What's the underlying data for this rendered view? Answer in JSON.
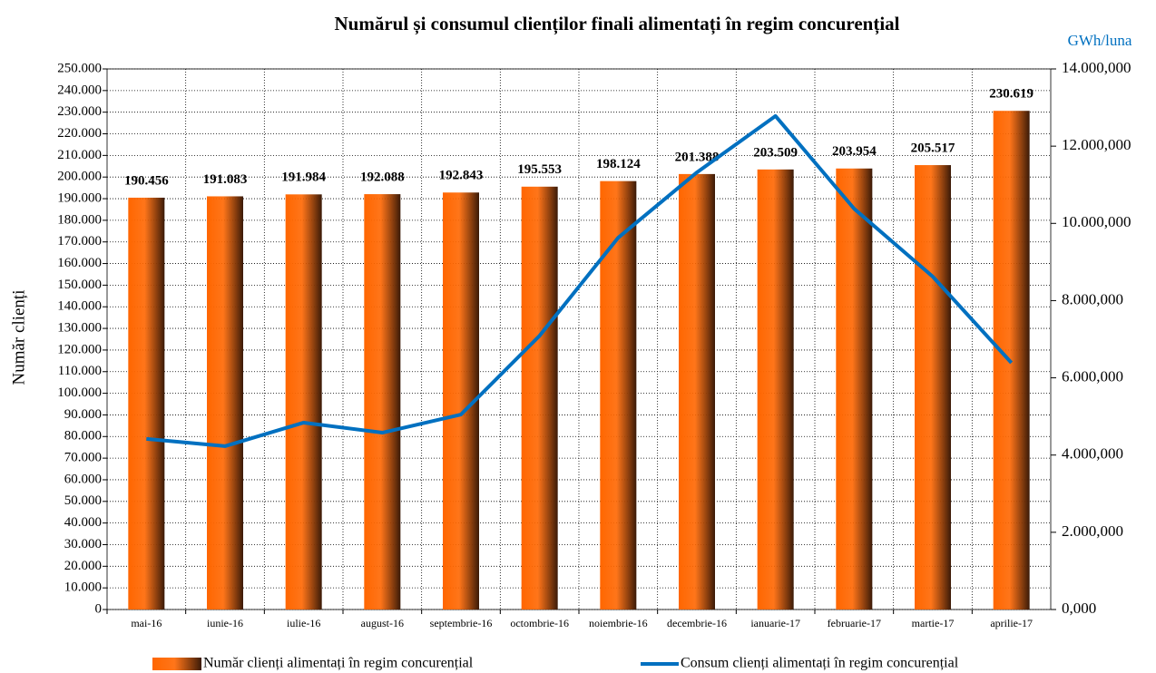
{
  "chart_data": {
    "type": "bar",
    "title": "Numărul și consumul clienților finali alimentați în regim concurențial",
    "ylabel": "Număr clienți",
    "y2label": "GWh/luna",
    "categories": [
      "mai-16",
      "iunie-16",
      "iulie-16",
      "august-16",
      "septembrie-16",
      "octombrie-16",
      "noiembrie-16",
      "decembrie-16",
      "ianuarie-17",
      "februarie-17",
      "martie-17",
      "aprilie-17"
    ],
    "series": [
      {
        "name": "Număr clienți alimentați în regim concurențial",
        "type": "bar",
        "color": "#ff6600",
        "values": [
          190456,
          191083,
          191984,
          192088,
          192843,
          195553,
          198124,
          201388,
          203509,
          203954,
          205517,
          230619
        ],
        "value_labels": [
          "190.456",
          "191.083",
          "191.984",
          "192.088",
          "192.843",
          "195.553",
          "198.124",
          "201.388",
          "203.509",
          "203.954",
          "205.517",
          "230.619"
        ]
      },
      {
        "name": "Consum clienți alimentați în regim concurențial",
        "type": "line",
        "color": "#0070c0",
        "axis": "y2",
        "values": [
          4420000,
          4230000,
          4840000,
          4580000,
          5050000,
          7090000,
          9630000,
          11320000,
          12780000,
          10380000,
          8620000,
          6390000
        ]
      }
    ],
    "ylim": [
      0,
      250000
    ],
    "yticks": [
      0,
      {
        "value": 10000,
        "label": "10.000"
      },
      {
        "value": 20000,
        "label": "20.000"
      },
      {
        "value": 30000,
        "label": "30.000"
      },
      {
        "value": 40000,
        "label": "40.000"
      },
      {
        "value": 50000,
        "label": "50.000"
      },
      {
        "value": 60000,
        "label": "60.000"
      },
      {
        "value": 70000,
        "label": "70.000"
      },
      {
        "value": 80000,
        "label": "80.000"
      },
      {
        "value": 90000,
        "label": "90.000"
      },
      {
        "value": 100000,
        "label": "100.000"
      },
      {
        "value": 110000,
        "label": "110.000"
      },
      {
        "value": 120000,
        "label": "120.000"
      },
      {
        "value": 130000,
        "label": "130.000"
      },
      {
        "value": 140000,
        "label": "140.000"
      },
      {
        "value": 150000,
        "label": "150.000"
      },
      {
        "value": 160000,
        "label": "160.000"
      },
      {
        "value": 170000,
        "label": "170.000"
      },
      {
        "value": 180000,
        "label": "180.000"
      },
      {
        "value": 190000,
        "label": "190.000"
      },
      {
        "value": 200000,
        "label": "200.000"
      },
      {
        "value": 210000,
        "label": "210.000"
      },
      {
        "value": 220000,
        "label": "220.000"
      },
      {
        "value": 230000,
        "label": "230.000"
      },
      {
        "value": 240000,
        "label": "240.000"
      },
      {
        "value": 250000,
        "label": "250.000"
      }
    ],
    "y2lim": [
      0,
      14000000
    ],
    "y2ticks": [
      {
        "value": 0,
        "label": "0,000"
      },
      {
        "value": 2000000,
        "label": "2.000,000"
      },
      {
        "value": 4000000,
        "label": "4.000,000"
      },
      {
        "value": 6000000,
        "label": "6.000,000"
      },
      {
        "value": 8000000,
        "label": "8.000,000"
      },
      {
        "value": 10000000,
        "label": "10.000,000"
      },
      {
        "value": 12000000,
        "label": "12.000,000"
      },
      {
        "value": 14000000,
        "label": "14.000,000"
      }
    ],
    "grid": true,
    "legend": "bottom"
  }
}
